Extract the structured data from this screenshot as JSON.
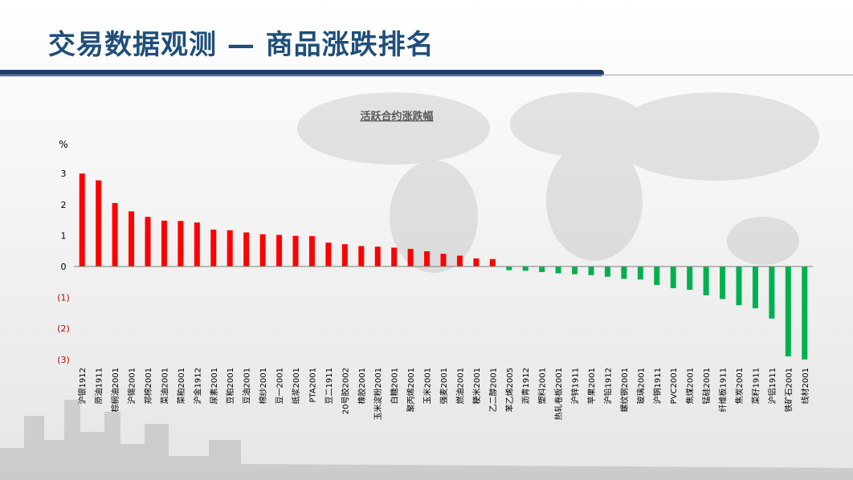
{
  "header": {
    "title": "交易数据观测 — 商品涨跌排名"
  },
  "chart_data": {
    "type": "bar",
    "title": "活跃合约涨跌幅",
    "ylabel": "%",
    "ylim": [
      -3,
      3
    ],
    "yticks": [
      3,
      2,
      1,
      0,
      -1,
      -2,
      -3
    ],
    "ytick_labels": [
      "3",
      "2",
      "1",
      "0",
      "(1)",
      "(2)",
      "(3)"
    ],
    "colors": {
      "positive": "#ff0000",
      "negative": "#00b050"
    },
    "categories": [
      "沪银1912",
      "原油1911",
      "棕榈油2001",
      "沪锡2001",
      "郑棉2001",
      "菜油2001",
      "菜粕2001",
      "沪金1912",
      "尿素2001",
      "豆粕2001",
      "豆油2001",
      "棉纱2001",
      "豆一2001",
      "纸浆2001",
      "PTA2001",
      "豆二1911",
      "20号胶2002",
      "橡胶2001",
      "玉米淀粉2001",
      "白糖2001",
      "聚丙烯2001",
      "玉米2001",
      "强麦2001",
      "燃油2001",
      "粳米2001",
      "乙二醇2001",
      "苯乙烯2005",
      "沥青1912",
      "塑料2001",
      "热轧卷板2001",
      "沪锌1911",
      "苹果2001",
      "沪铅1912",
      "螺纹钢2001",
      "玻璃2001",
      "沪铜1911",
      "PVC2001",
      "焦煤2001",
      "锰硅2001",
      "纤维板1911",
      "焦炭2001",
      "菜籽1911",
      "沪铝1911",
      "铁矿石2001",
      "线材2001"
    ],
    "values": [
      3.0,
      2.78,
      2.05,
      1.78,
      1.6,
      1.48,
      1.47,
      1.42,
      1.19,
      1.17,
      1.1,
      1.04,
      1.02,
      0.99,
      0.98,
      0.77,
      0.72,
      0.66,
      0.64,
      0.61,
      0.57,
      0.49,
      0.41,
      0.35,
      0.26,
      0.24,
      -0.12,
      -0.14,
      -0.18,
      -0.22,
      -0.25,
      -0.28,
      -0.33,
      -0.4,
      -0.42,
      -0.6,
      -0.7,
      -0.75,
      -0.93,
      -1.05,
      -1.25,
      -1.35,
      -1.68,
      -2.9,
      -3.0
    ]
  }
}
